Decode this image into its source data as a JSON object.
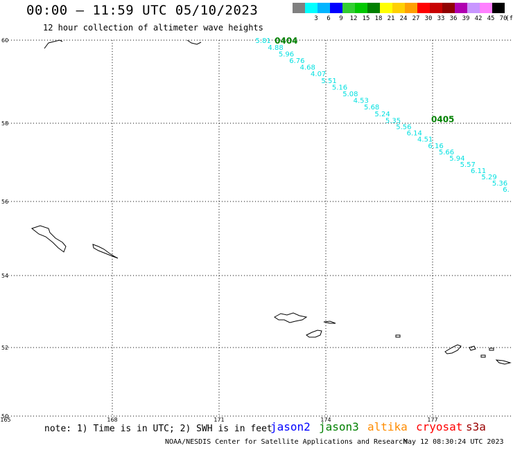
{
  "header": {
    "title": "00:00 – 11:59 UTC 05/10/2023",
    "subtitle": "12 hour collection of altimeter wave heights"
  },
  "legend": {
    "items": [
      {
        "label": "",
        "color": "#808080"
      },
      {
        "label": "3",
        "color": "#00ffff"
      },
      {
        "label": "6",
        "color": "#00b4ff"
      },
      {
        "label": "9",
        "color": "#0000ff"
      },
      {
        "label": "12",
        "color": "#32cd32"
      },
      {
        "label": "15",
        "color": "#00c800"
      },
      {
        "label": "18",
        "color": "#008000"
      },
      {
        "label": "21",
        "color": "#ffff00"
      },
      {
        "label": "24",
        "color": "#ffd000"
      },
      {
        "label": "27",
        "color": "#ffa000"
      },
      {
        "label": "30",
        "color": "#ff0000"
      },
      {
        "label": "33",
        "color": "#c80000"
      },
      {
        "label": "36",
        "color": "#900000"
      },
      {
        "label": "39",
        "color": "#b000b0"
      },
      {
        "label": "42",
        "color": "#c896ff"
      },
      {
        "label": "45",
        "color": "#ff80ff"
      },
      {
        "label": "70",
        "color": "#000000"
      }
    ],
    "unit": "(ft)"
  },
  "map": {
    "lon_ticks": [
      "165",
      "168",
      "171",
      "174",
      "177"
    ],
    "lat_ticks": [
      "60",
      "58",
      "56",
      "54",
      "52",
      "50"
    ]
  },
  "track": {
    "color": "#00e0e0",
    "time_color": "#008000",
    "times": [
      {
        "label": "0404",
        "lon": 172.6,
        "lat": 59.95
      },
      {
        "label": "0405",
        "lon": 177.0,
        "lat": 58.06
      }
    ],
    "points": [
      {
        "lon": 172.1,
        "lat": 59.98,
        "swh": "5.81"
      },
      {
        "lon": 172.45,
        "lat": 59.82,
        "swh": "4.88"
      },
      {
        "lon": 172.75,
        "lat": 59.66,
        "swh": "5.96"
      },
      {
        "lon": 173.05,
        "lat": 59.5,
        "swh": "6.76"
      },
      {
        "lon": 173.35,
        "lat": 59.34,
        "swh": "4.68"
      },
      {
        "lon": 173.65,
        "lat": 59.18,
        "swh": "4.07"
      },
      {
        "lon": 173.95,
        "lat": 59.02,
        "swh": "5.51"
      },
      {
        "lon": 174.25,
        "lat": 58.86,
        "swh": "5.16"
      },
      {
        "lon": 174.55,
        "lat": 58.7,
        "swh": "5.08"
      },
      {
        "lon": 174.85,
        "lat": 58.54,
        "swh": "4.53"
      },
      {
        "lon": 175.15,
        "lat": 58.38,
        "swh": "5.68"
      },
      {
        "lon": 175.45,
        "lat": 58.22,
        "swh": "5.24"
      },
      {
        "lon": 175.75,
        "lat": 58.06,
        "swh": "5.35"
      },
      {
        "lon": 176.05,
        "lat": 57.9,
        "swh": "5.56"
      },
      {
        "lon": 176.35,
        "lat": 57.74,
        "swh": "6.14"
      },
      {
        "lon": 176.65,
        "lat": 57.58,
        "swh": "4.51"
      },
      {
        "lon": 176.95,
        "lat": 57.42,
        "swh": "6.16"
      },
      {
        "lon": 177.25,
        "lat": 57.26,
        "swh": "5.66"
      },
      {
        "lon": 177.55,
        "lat": 57.1,
        "swh": "5.94"
      },
      {
        "lon": 177.85,
        "lat": 56.94,
        "swh": "5.57"
      },
      {
        "lon": 178.15,
        "lat": 56.78,
        "swh": "6.11"
      },
      {
        "lon": 178.45,
        "lat": 56.62,
        "swh": "5.29"
      },
      {
        "lon": 178.75,
        "lat": 56.46,
        "swh": "5.36"
      },
      {
        "lon": 179.05,
        "lat": 56.3,
        "swh": "6."
      }
    ]
  },
  "footer": {
    "note": "note: 1) Time is in UTC; 2) SWH is in feet",
    "missions": [
      {
        "label": "jason2",
        "color": "#0000ff"
      },
      {
        "label": "jason3",
        "color": "#008000"
      },
      {
        "label": "altika",
        "color": "#ff8c00"
      },
      {
        "label": "cryosat",
        "color": "#ff0000"
      },
      {
        "label": "s3a",
        "color": "#990000"
      }
    ],
    "credit": "NOAA/NESDIS Center for Satellite Applications and Research",
    "timestamp": "May 12 08:30:24 UTC 2023"
  }
}
